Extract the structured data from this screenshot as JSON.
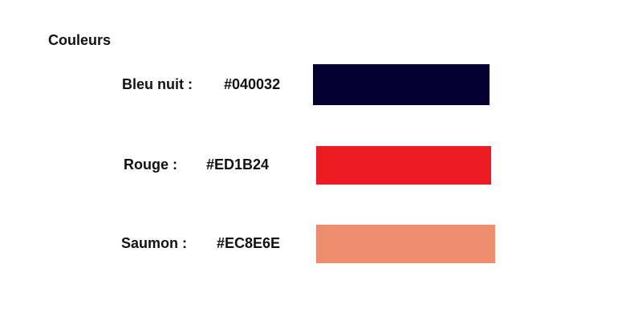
{
  "title": "Couleurs",
  "colors": [
    {
      "label": "Bleu nuit :",
      "hex": "#040032",
      "swatch": "#040032"
    },
    {
      "label": "Rouge :",
      "hex": "#ED1B24",
      "swatch": "#ED1B24"
    },
    {
      "label": "Saumon :",
      "hex": "#EC8E6E",
      "swatch": "#EC8E6E"
    }
  ]
}
